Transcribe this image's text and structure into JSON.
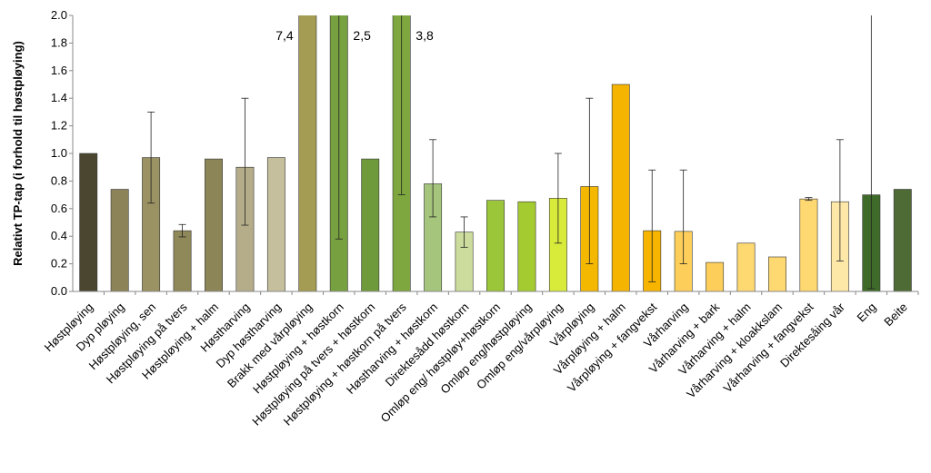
{
  "chart_data": {
    "type": "bar",
    "y_label": "Relativt TP-tap (i forhold til høstpløying)",
    "categories": [
      "Høstpløying",
      "Dyp pløying",
      "Høstpløying, sen",
      "Høstpløying på tvers",
      "Høstpløying + halm",
      "Høstharving",
      "Dyp høstharving",
      "Brakk med vårpløying",
      "Høstpløying + høstkorn",
      "Høstpløying på tvers + høstkorn",
      "Høstpløying + høstkorn på tvers",
      "Høstharving + høstkorn",
      "Direktesådd høstkorn",
      "Omløp eng/ høstpløy+høstkorn",
      "Omløp eng/høstpløying",
      "Omløp eng/vårpløying",
      "Vårpløying",
      "Vårpløying + halm",
      "Vårpløying + fangvekst",
      "Vårharving",
      "Vårharving + bark",
      "Vårharving + halm",
      "Vårharving + kloakkslam",
      "Vårharving + fangvekst",
      "Direktesåing vår",
      "Eng",
      "Beite"
    ],
    "values": [
      1.0,
      0.74,
      0.97,
      0.44,
      0.96,
      0.9,
      0.97,
      7.4,
      2.5,
      0.96,
      3.8,
      0.78,
      0.43,
      0.66,
      0.65,
      0.675,
      0.76,
      1.5,
      0.44,
      0.435,
      0.21,
      0.35,
      0.25,
      0.67,
      0.65,
      0.7,
      0.74
    ],
    "value_labels": [
      null,
      null,
      null,
      null,
      null,
      null,
      null,
      "7,4",
      "2,5",
      null,
      "3,8",
      null,
      null,
      null,
      null,
      null,
      null,
      null,
      null,
      null,
      null,
      null,
      null,
      null,
      null,
      null,
      null
    ],
    "errors": [
      null,
      null,
      [
        0.33,
        0.33
      ],
      [
        0.045,
        0.045
      ],
      null,
      [
        0.42,
        0.5
      ],
      null,
      null,
      [
        2.12,
        0
      ],
      null,
      [
        3.1,
        0
      ],
      [
        0.24,
        0.32
      ],
      [
        0.11,
        0.11
      ],
      null,
      null,
      [
        0.325,
        0.325
      ],
      [
        0.56,
        0.64
      ],
      null,
      [
        0.37,
        0.44
      ],
      [
        0.235,
        0.445
      ],
      null,
      null,
      null,
      [
        0.01,
        0.01
      ],
      [
        0.43,
        0.45
      ],
      [
        0.68,
        1.4
      ],
      null
    ],
    "colors": [
      "#4a4630",
      "#8c8458",
      "#9a9262",
      "#8f8859",
      "#8b8558",
      "#b5ad8a",
      "#c6bf9d",
      "#a39c52",
      "#77a040",
      "#6e9a3c",
      "#7ea83f",
      "#a5c47c",
      "#cbdc9c",
      "#9cc63a",
      "#a4cc30",
      "#d8ea3a",
      "#f5b800",
      "#f5b400",
      "#f7b500",
      "#fdcf5a",
      "#fdcf5a",
      "#fed870",
      "#fed870",
      "#fed870",
      "#fee8a8",
      "#3f6b2a",
      "#4e6b35"
    ],
    "ylim": [
      0,
      2
    ],
    "yticks": [
      {
        "value": 0,
        "label": "0.0"
      },
      0.2,
      0.4,
      0.6,
      0.8,
      {
        "value": 1,
        "label": "1.0"
      },
      1.2,
      1.4,
      1.6,
      1.8,
      {
        "value": 2,
        "label": "2.0"
      }
    ]
  }
}
